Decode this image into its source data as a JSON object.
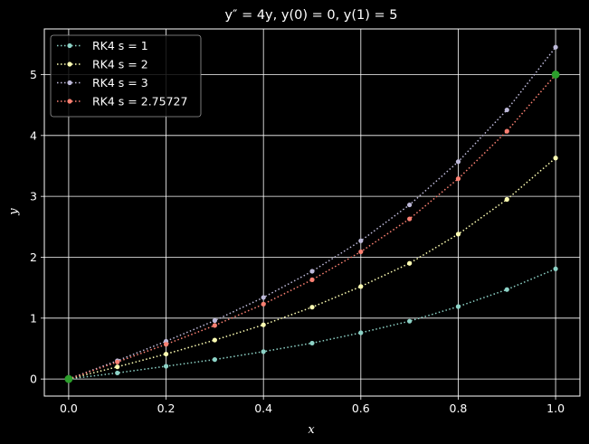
{
  "chart_data": {
    "type": "line",
    "title": "y″ = 4y, y(0) = 0, y(1) = 5",
    "xlabel": "x",
    "ylabel": "y",
    "xlim": [
      -0.05,
      1.05
    ],
    "ylim": [
      -0.28,
      5.75
    ],
    "xticks": [
      0.0,
      0.2,
      0.4,
      0.6,
      0.8,
      1.0
    ],
    "xtick_labels": [
      "0.0",
      "0.2",
      "0.4",
      "0.6",
      "0.8",
      "1.0"
    ],
    "yticks": [
      0,
      1,
      2,
      3,
      4,
      5
    ],
    "ytick_labels": [
      "0",
      "1",
      "2",
      "3",
      "4",
      "5"
    ],
    "grid": true,
    "legend_position": "top-left",
    "x": [
      0.0,
      0.1,
      0.2,
      0.3,
      0.4,
      0.5,
      0.6,
      0.7,
      0.8,
      0.9,
      1.0
    ],
    "series": [
      {
        "name": "RK4 s = 1",
        "color": "#8dd3c7",
        "values": [
          0.0,
          0.1,
          0.21,
          0.32,
          0.45,
          0.59,
          0.76,
          0.95,
          1.19,
          1.47,
          1.81
        ]
      },
      {
        "name": "RK4 s = 2",
        "color": "#ffffb3",
        "values": [
          0.0,
          0.2,
          0.41,
          0.64,
          0.89,
          1.18,
          1.52,
          1.9,
          2.38,
          2.95,
          3.63
        ]
      },
      {
        "name": "RK4 s = 3",
        "color": "#bebada",
        "values": [
          0.0,
          0.3,
          0.62,
          0.96,
          1.34,
          1.77,
          2.27,
          2.86,
          3.57,
          4.42,
          5.45
        ]
      },
      {
        "name": "RK4 s = 2.75727",
        "color": "#fb8072",
        "values": [
          0.0,
          0.28,
          0.57,
          0.88,
          1.23,
          1.63,
          2.09,
          2.63,
          3.29,
          4.07,
          5.0
        ]
      }
    ],
    "boundary_points": [
      {
        "x": 0.0,
        "y": 0.0,
        "color": "#2ca02c"
      },
      {
        "x": 1.0,
        "y": 5.0,
        "color": "#2ca02c"
      }
    ]
  }
}
